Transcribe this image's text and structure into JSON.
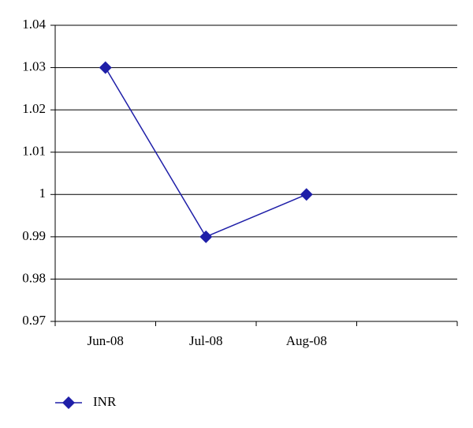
{
  "chart_data": {
    "type": "line",
    "categories": [
      "Jun-08",
      "Jul-08",
      "Aug-08",
      null
    ],
    "series": [
      {
        "name": "INR",
        "color": "#1f1fa8",
        "values": [
          1.03,
          0.99,
          1,
          null
        ]
      }
    ],
    "ylim": [
      0.97,
      1.04
    ],
    "yticks": [
      0.97,
      0.98,
      0.99,
      1,
      1.01,
      1.02,
      1.03,
      1.04
    ],
    "grid": true,
    "legend": "bottom-left"
  }
}
